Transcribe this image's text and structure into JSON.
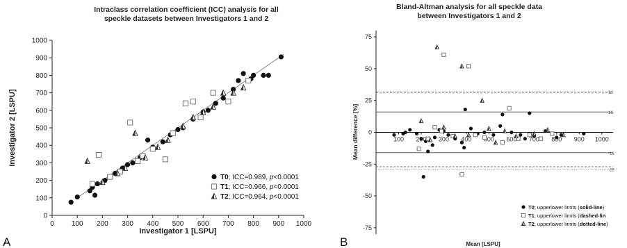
{
  "chart_data": [
    {
      "type": "scatter",
      "panel_label": "A",
      "title_lines": [
        "Intraclass correlation coefficient (ICC) analysis for all",
        "speckle datasets between Investigators 1 and 2"
      ],
      "xlabel": "Investigator 1 [LSPU]",
      "ylabel": "Investigator 2 [LSPU]",
      "xlim": [
        0,
        1000
      ],
      "ylim": [
        0,
        1000
      ],
      "xticks": [
        "0",
        "100",
        "200",
        "300",
        "400",
        "500",
        "600",
        "700",
        "800",
        "900",
        "1000"
      ],
      "yticks": [
        "0",
        "100",
        "200",
        "300",
        "400",
        "500",
        "600",
        "700",
        "800",
        "900",
        "1000"
      ],
      "identity_line": [
        [
          100,
          100
        ],
        [
          920,
          920
        ]
      ],
      "legend_position": "bottom-right",
      "series": [
        {
          "name": "T0",
          "marker": "filled-circle",
          "legend_text": "; ICC=0.989, ",
          "legend_p": "p",
          "legend_end": "<0.0001",
          "points": [
            [
              75,
              75
            ],
            [
              100,
              105
            ],
            [
              150,
              140
            ],
            [
              160,
              160
            ],
            [
              170,
              115
            ],
            [
              180,
              180
            ],
            [
              210,
              200
            ],
            [
              250,
              240
            ],
            [
              280,
              270
            ],
            [
              300,
              290
            ],
            [
              320,
              300
            ],
            [
              350,
              330
            ],
            [
              380,
              430
            ],
            [
              400,
              390
            ],
            [
              440,
              420
            ],
            [
              470,
              460
            ],
            [
              500,
              490
            ],
            [
              520,
              500
            ],
            [
              560,
              550
            ],
            [
              600,
              590
            ],
            [
              620,
              600
            ],
            [
              650,
              640
            ],
            [
              680,
              670
            ],
            [
              720,
              720
            ],
            [
              740,
              770
            ],
            [
              760,
              810
            ],
            [
              790,
              780
            ],
            [
              800,
              800
            ],
            [
              840,
              800
            ],
            [
              860,
              800
            ],
            [
              910,
              905
            ]
          ]
        },
        {
          "name": "T1",
          "marker": "open-square",
          "legend_text": "; ICC=0.966, ",
          "legend_p": "p",
          "legend_end": "<0.0001",
          "points": [
            [
              160,
              180
            ],
            [
              185,
              345
            ],
            [
              230,
              220
            ],
            [
              270,
              250
            ],
            [
              310,
              530
            ],
            [
              340,
              310
            ],
            [
              360,
              340
            ],
            [
              400,
              380
            ],
            [
              450,
              320
            ],
            [
              480,
              470
            ],
            [
              530,
              640
            ],
            [
              560,
              650
            ],
            [
              590,
              560
            ],
            [
              640,
              700
            ],
            [
              700,
              650
            ],
            [
              780,
              770
            ]
          ]
        },
        {
          "name": "T2",
          "marker": "open-triangle",
          "legend_text": "; ICC=0.964, ",
          "legend_p": "p",
          "legend_end": "<0.0001",
          "points": [
            [
              140,
              310
            ],
            [
              200,
              190
            ],
            [
              260,
              240
            ],
            [
              290,
              270
            ],
            [
              330,
              470
            ],
            [
              370,
              330
            ],
            [
              420,
              390
            ],
            [
              460,
              430
            ],
            [
              520,
              510
            ],
            [
              560,
              560
            ],
            [
              600,
              590
            ],
            [
              640,
              620
            ],
            [
              680,
              700
            ],
            [
              720,
              700
            ],
            [
              760,
              730
            ]
          ]
        }
      ]
    },
    {
      "type": "scatter",
      "panel_label": "B",
      "title_lines": [
        "Bland-Altman analysis for all speckle data",
        "between Investigators 1 and 2"
      ],
      "xlabel": "Mean [LSPU]",
      "ylabel": "Mean difference [%]",
      "xlim": [
        0,
        1050
      ],
      "ylim": [
        -80,
        80
      ],
      "xticks": [
        "100",
        "200",
        "300",
        "400",
        "500",
        "600",
        "700",
        "800",
        "900",
        "1000"
      ],
      "yticks": [
        "75",
        "50",
        "25",
        "0",
        "-25",
        "-50",
        "-75"
      ],
      "zero_line": 0,
      "limit_lines": [
        {
          "value": 32,
          "style": "dotted"
        },
        {
          "value": 31,
          "style": "dashed"
        },
        {
          "value": 16,
          "style": "solid"
        },
        {
          "value": -16,
          "style": "solid"
        },
        {
          "value": -27,
          "style": "dashed"
        },
        {
          "value": -29,
          "style": "dotted"
        }
      ],
      "limit_labels": [
        {
          "value": 32,
          "text": "32"
        },
        {
          "value": 16,
          "text": "16"
        },
        {
          "value": -16,
          "text": "-16"
        },
        {
          "value": -29,
          "text": "-29"
        }
      ],
      "legend_position": "bottom-right",
      "series": [
        {
          "name": "T0",
          "marker": "filled-circle",
          "legend_bold": "T0",
          "legend_text": "; upperlower limits (",
          "legend_bold2": "solid-line",
          "legend_end": ")",
          "points": [
            [
              80,
              -2
            ],
            [
              130,
              0
            ],
            [
              150,
              2
            ],
            [
              180,
              -1
            ],
            [
              200,
              -5
            ],
            [
              220,
              -7
            ],
            [
              230,
              -15
            ],
            [
              250,
              -10
            ],
            [
              260,
              -4
            ],
            [
              280,
              2
            ],
            [
              300,
              1
            ],
            [
              320,
              -2
            ],
            [
              350,
              -5
            ],
            [
              380,
              -8
            ],
            [
              390,
              -12
            ],
            [
              395,
              18
            ],
            [
              420,
              3
            ],
            [
              450,
              -1
            ],
            [
              480,
              0
            ],
            [
              520,
              -2
            ],
            [
              550,
              5
            ],
            [
              560,
              14
            ],
            [
              600,
              0
            ],
            [
              640,
              -2
            ],
            [
              660,
              -5
            ],
            [
              680,
              15
            ],
            [
              700,
              -3
            ],
            [
              750,
              1
            ],
            [
              800,
              -4
            ],
            [
              820,
              -2
            ],
            [
              920,
              -1
            ],
            [
              210,
              -35
            ],
            [
              120,
              -1
            ]
          ]
        },
        {
          "name": "T1",
          "marker": "open-square",
          "legend_bold": "T1",
          "legend_text": "; upperlower limits (",
          "legend_bold2": "dashed-lin",
          "legend_end": "",
          "points": [
            [
              190,
              -13
            ],
            [
              230,
              -5
            ],
            [
              260,
              4
            ],
            [
              290,
              1
            ],
            [
              300,
              61
            ],
            [
              340,
              -3
            ],
            [
              380,
              -33
            ],
            [
              410,
              52
            ],
            [
              440,
              -2
            ],
            [
              480,
              -4
            ],
            [
              560,
              -8
            ],
            [
              590,
              19
            ],
            [
              630,
              -5
            ],
            [
              680,
              -2
            ],
            [
              730,
              -5
            ],
            [
              780,
              -1
            ]
          ]
        },
        {
          "name": "T2",
          "marker": "open-triangle",
          "legend_bold": "T2",
          "legend_text": "; upperlower limits (",
          "legend_bold2": "dotted-line",
          "legend_end": ")",
          "points": [
            [
              200,
              9
            ],
            [
              240,
              -6
            ],
            [
              270,
              67
            ],
            [
              300,
              4
            ],
            [
              350,
              -3
            ],
            [
              380,
              52
            ],
            [
              410,
              -2
            ],
            [
              470,
              25
            ],
            [
              500,
              3
            ],
            [
              530,
              -8
            ],
            [
              570,
              1
            ],
            [
              620,
              -3
            ],
            [
              700,
              -1
            ],
            [
              760,
              2
            ],
            [
              830,
              -2
            ]
          ]
        }
      ]
    }
  ]
}
